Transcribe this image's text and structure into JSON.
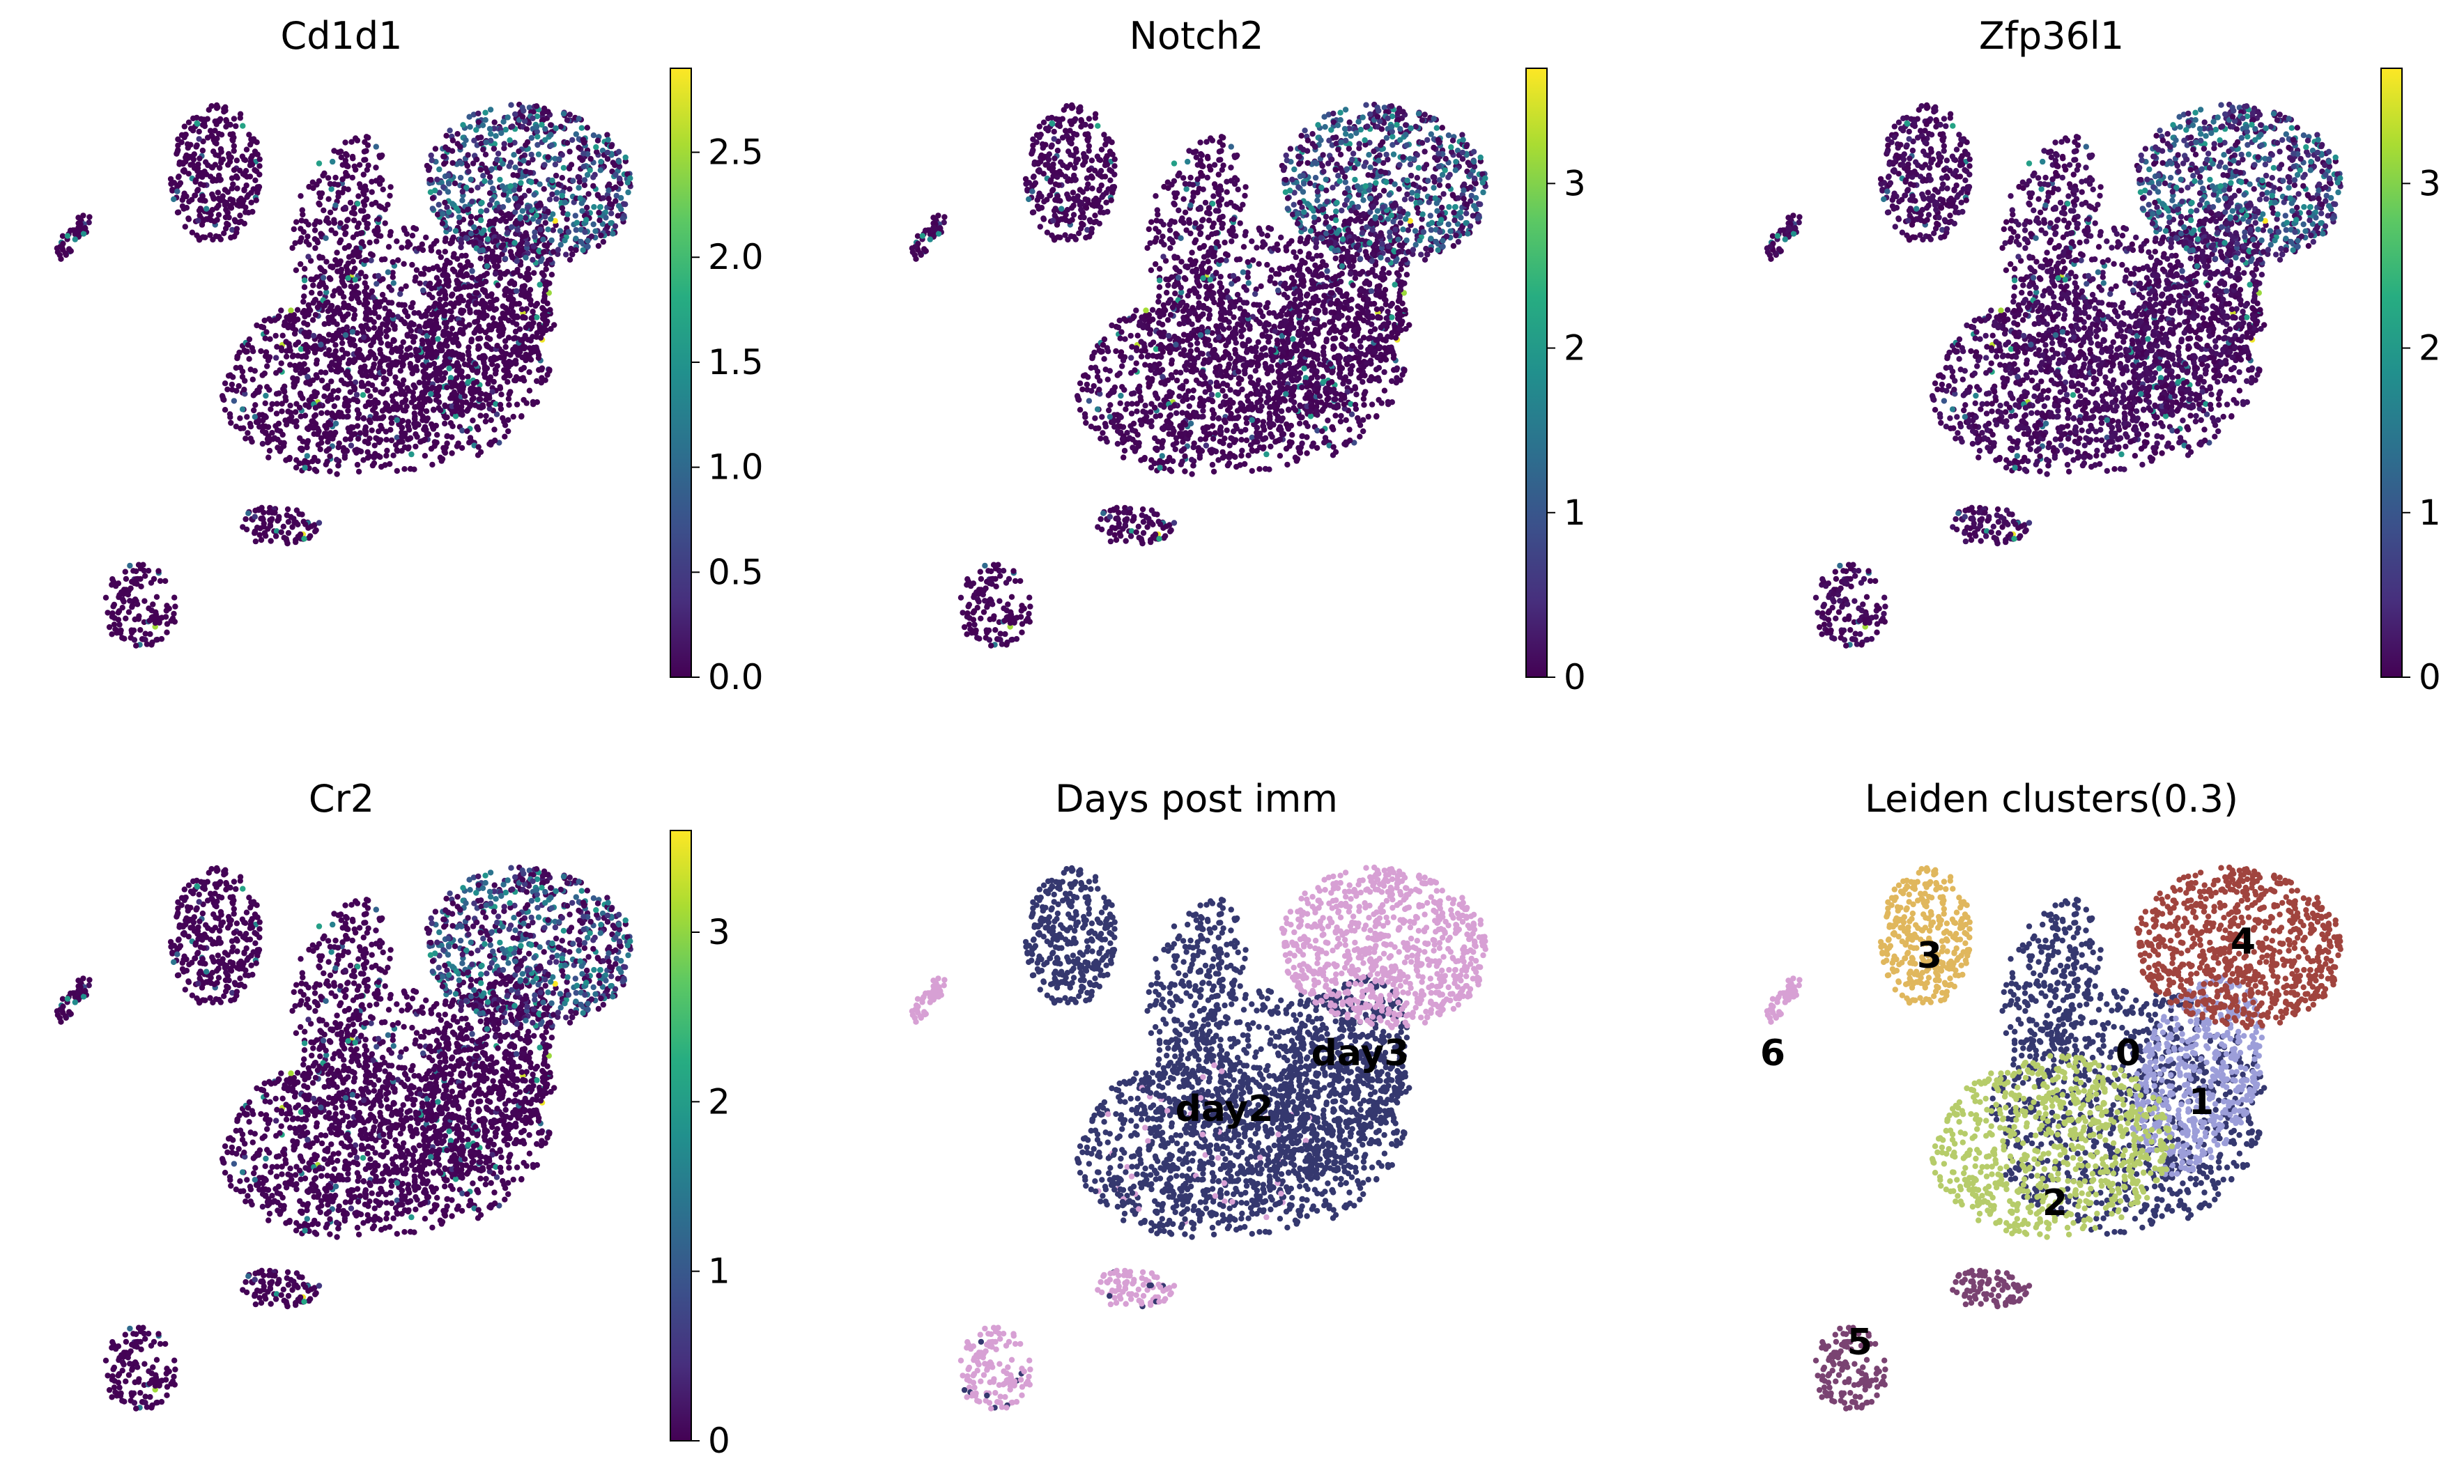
{
  "chart_data": [
    {
      "type": "scatter",
      "title": "Cd1d1",
      "colorbar": {
        "colormap": "viridis",
        "vmin": 0.0,
        "vmax": 2.9,
        "ticks": [
          "0.0",
          "0.5",
          "1.0",
          "1.5",
          "2.0",
          "2.5"
        ]
      },
      "expression": {
        "high_region": "top-right cluster",
        "background_level": 0.05
      }
    },
    {
      "type": "scatter",
      "title": "Notch2",
      "colorbar": {
        "colormap": "viridis",
        "vmin": 0,
        "vmax": 3.7,
        "ticks": [
          "0",
          "1",
          "2",
          "3"
        ]
      },
      "expression": {
        "high_region": "top-right cluster",
        "background_level": 0.2
      }
    },
    {
      "type": "scatter",
      "title": "Zfp36l1",
      "colorbar": {
        "colormap": "viridis",
        "vmin": 0,
        "vmax": 3.7,
        "ticks": [
          "0",
          "1",
          "2",
          "3"
        ]
      },
      "expression": {
        "high_region": "top-right cluster",
        "background_level": 0.4
      }
    },
    {
      "type": "scatter",
      "title": "Cr2",
      "colorbar": {
        "colormap": "viridis",
        "vmin": 0,
        "vmax": 3.6,
        "ticks": [
          "0",
          "1",
          "2",
          "3"
        ]
      },
      "expression": {
        "high_region": "top-right cluster",
        "background_level": 0.1
      }
    },
    {
      "type": "scatter",
      "title": "Days post imm",
      "categories": [
        {
          "label": "day2",
          "color": "#35386f"
        },
        {
          "label": "day3",
          "color": "#d7a0d4"
        }
      ]
    },
    {
      "type": "scatter",
      "title": "Leiden clusters(0.3)",
      "categories": [
        {
          "label": "0",
          "color": "#35386f"
        },
        {
          "label": "1",
          "color": "#9c9ed9"
        },
        {
          "label": "2",
          "color": "#b6cc6a"
        },
        {
          "label": "3",
          "color": "#e0b75d"
        },
        {
          "label": "4",
          "color": "#a0443e"
        },
        {
          "label": "5",
          "color": "#7a4372"
        },
        {
          "label": "6",
          "color": "#d7a0d4"
        }
      ]
    }
  ]
}
